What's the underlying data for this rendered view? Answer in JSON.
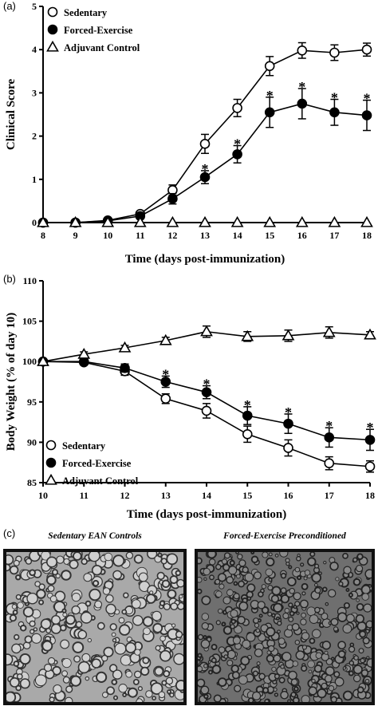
{
  "chart_data": [
    {
      "panel": "(a)",
      "type": "line",
      "xlabel": "Time (days post-immunization)",
      "ylabel": "Clinical Score",
      "x": [
        8,
        9,
        10,
        11,
        12,
        13,
        14,
        15,
        16,
        17,
        18
      ],
      "xlim": [
        8,
        18
      ],
      "ylim": [
        0,
        5
      ],
      "yticks": [
        0,
        1,
        2,
        3,
        4,
        5
      ],
      "legend_position": "top-left",
      "series": [
        {
          "name": "Sedentary",
          "marker": "open-circle",
          "values": [
            0,
            0,
            0.05,
            0.2,
            0.75,
            1.82,
            2.65,
            3.62,
            3.98,
            3.93,
            4.0
          ],
          "err": [
            0,
            0,
            0.03,
            0.06,
            0.12,
            0.22,
            0.2,
            0.22,
            0.18,
            0.18,
            0.15
          ]
        },
        {
          "name": "Forced-Exercise",
          "marker": "filled-circle",
          "values": [
            0,
            0,
            0.04,
            0.15,
            0.55,
            1.05,
            1.58,
            2.55,
            2.75,
            2.55,
            2.48
          ],
          "err": [
            0,
            0,
            0.02,
            0.05,
            0.12,
            0.15,
            0.2,
            0.35,
            0.35,
            0.3,
            0.35
          ]
        },
        {
          "name": "Adjuvant Control",
          "marker": "open-triangle",
          "values": [
            0,
            0,
            0,
            0,
            0,
            0,
            0,
            0,
            0,
            0,
            0
          ],
          "err": [
            0,
            0,
            0,
            0,
            0,
            0,
            0,
            0,
            0,
            0,
            0
          ]
        }
      ],
      "significance_x": [
        13,
        14,
        15,
        16,
        17,
        18
      ],
      "significance_label": "*"
    },
    {
      "panel": "(b)",
      "type": "line",
      "xlabel": "Time (days post-immunization)",
      "ylabel": "Body Weight (% of day 10)",
      "x": [
        10,
        11,
        12,
        13,
        14,
        15,
        16,
        17,
        18
      ],
      "xlim": [
        10,
        18
      ],
      "ylim": [
        85,
        110
      ],
      "yticks": [
        85,
        90,
        95,
        100,
        105,
        110
      ],
      "legend_position": "bottom-left",
      "series": [
        {
          "name": "Sedentary",
          "marker": "open-circle",
          "values": [
            100,
            99.9,
            98.8,
            95.4,
            93.9,
            91.0,
            89.3,
            87.4,
            87.0
          ],
          "err": [
            0,
            0.3,
            0.5,
            0.6,
            0.9,
            1.0,
            1.0,
            0.8,
            0.7
          ]
        },
        {
          "name": "Forced-Exercise",
          "marker": "filled-circle",
          "values": [
            100,
            100,
            99.2,
            97.5,
            96.2,
            93.3,
            92.3,
            90.6,
            90.3
          ],
          "err": [
            0,
            0.3,
            0.5,
            0.7,
            0.8,
            1.1,
            1.2,
            1.2,
            1.3
          ]
        },
        {
          "name": "Adjuvant Control",
          "marker": "open-triangle",
          "values": [
            100,
            100.9,
            101.7,
            102.6,
            103.7,
            103.1,
            103.2,
            103.6,
            103.3
          ],
          "err": [
            0,
            0.3,
            0.3,
            0.4,
            0.7,
            0.6,
            0.7,
            0.7,
            0.4
          ]
        }
      ],
      "significance_x": [
        13,
        14,
        15,
        16,
        17,
        18
      ],
      "significance_label": "*"
    }
  ],
  "panel_c": {
    "letter": "(c)",
    "left_title": "Sedentary EAN Controls",
    "right_title": "Forced-Exercise Preconditioned"
  }
}
